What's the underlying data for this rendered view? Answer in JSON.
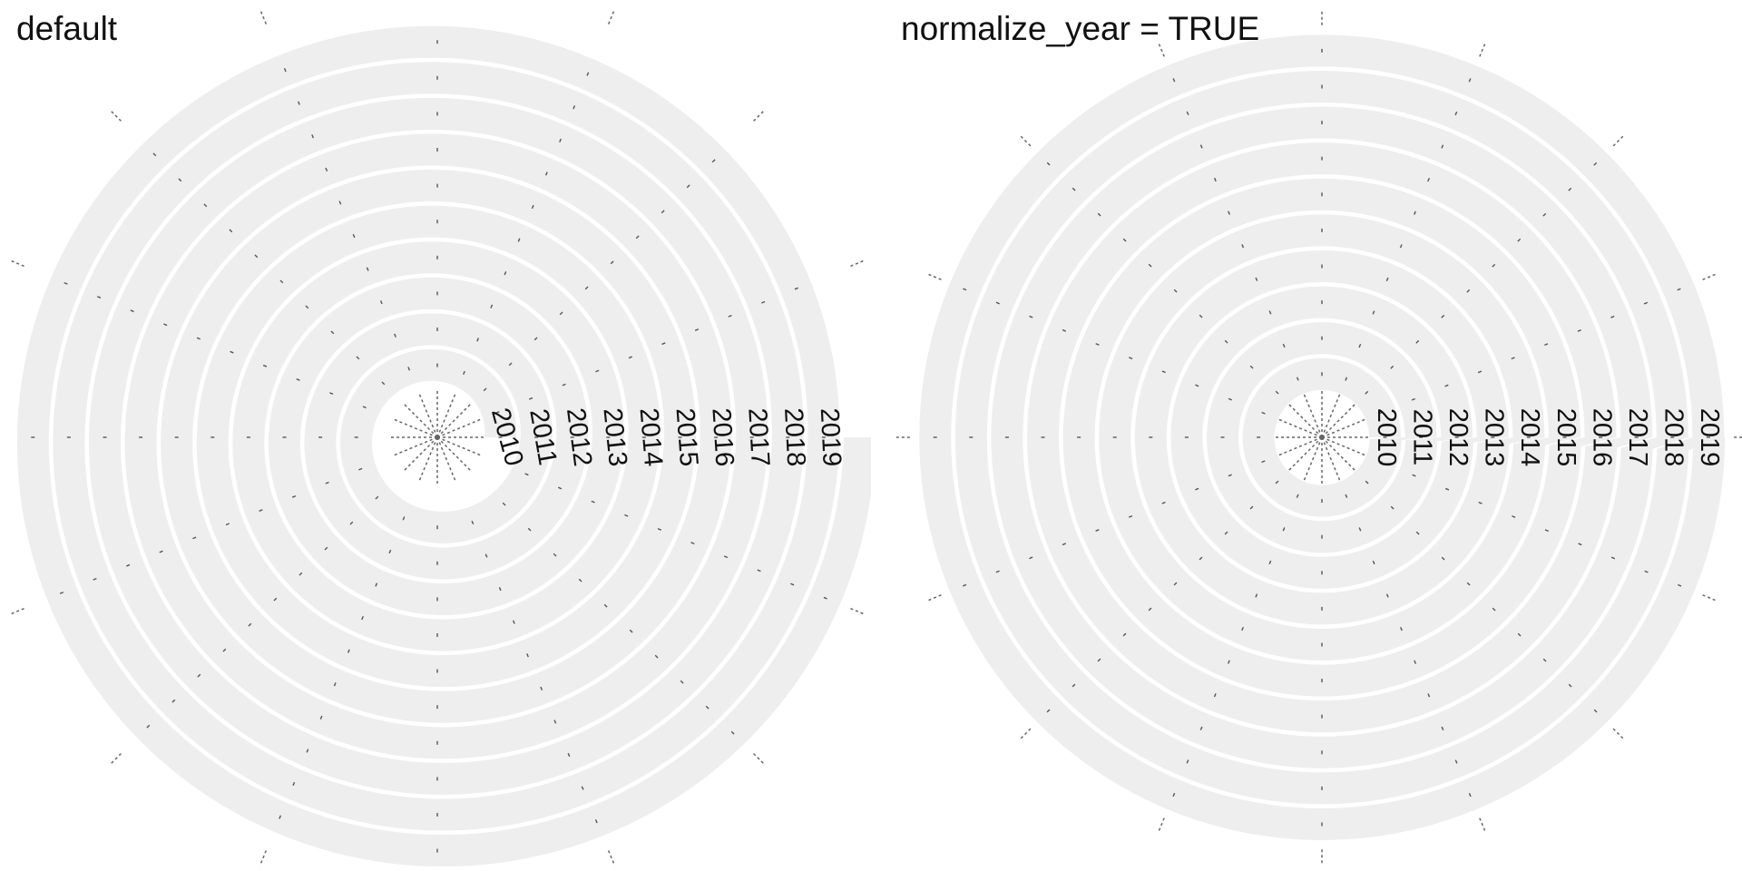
{
  "chart_data": [
    {
      "type": "spiral",
      "title": "default",
      "normalize_year": false,
      "years": [
        "2010",
        "2011",
        "2012",
        "2013",
        "2014",
        "2015",
        "2016",
        "2017",
        "2018",
        "2019"
      ],
      "start_angle_deg": 0,
      "track_fill": "#eeeeee",
      "track_separator": "#ffffff",
      "axis_ticks": 16,
      "axis_line_color": "#666666"
    },
    {
      "type": "spiral",
      "title": "normalize_year = TRUE",
      "normalize_year": true,
      "years": [
        "2010",
        "2011",
        "2012",
        "2013",
        "2014",
        "2015",
        "2016",
        "2017",
        "2018",
        "2019"
      ],
      "start_angle_deg": 0,
      "track_fill": "#eeeeee",
      "track_separator": "#ffffff",
      "axis_ticks": 16,
      "axis_line_color": "#666666"
    }
  ]
}
